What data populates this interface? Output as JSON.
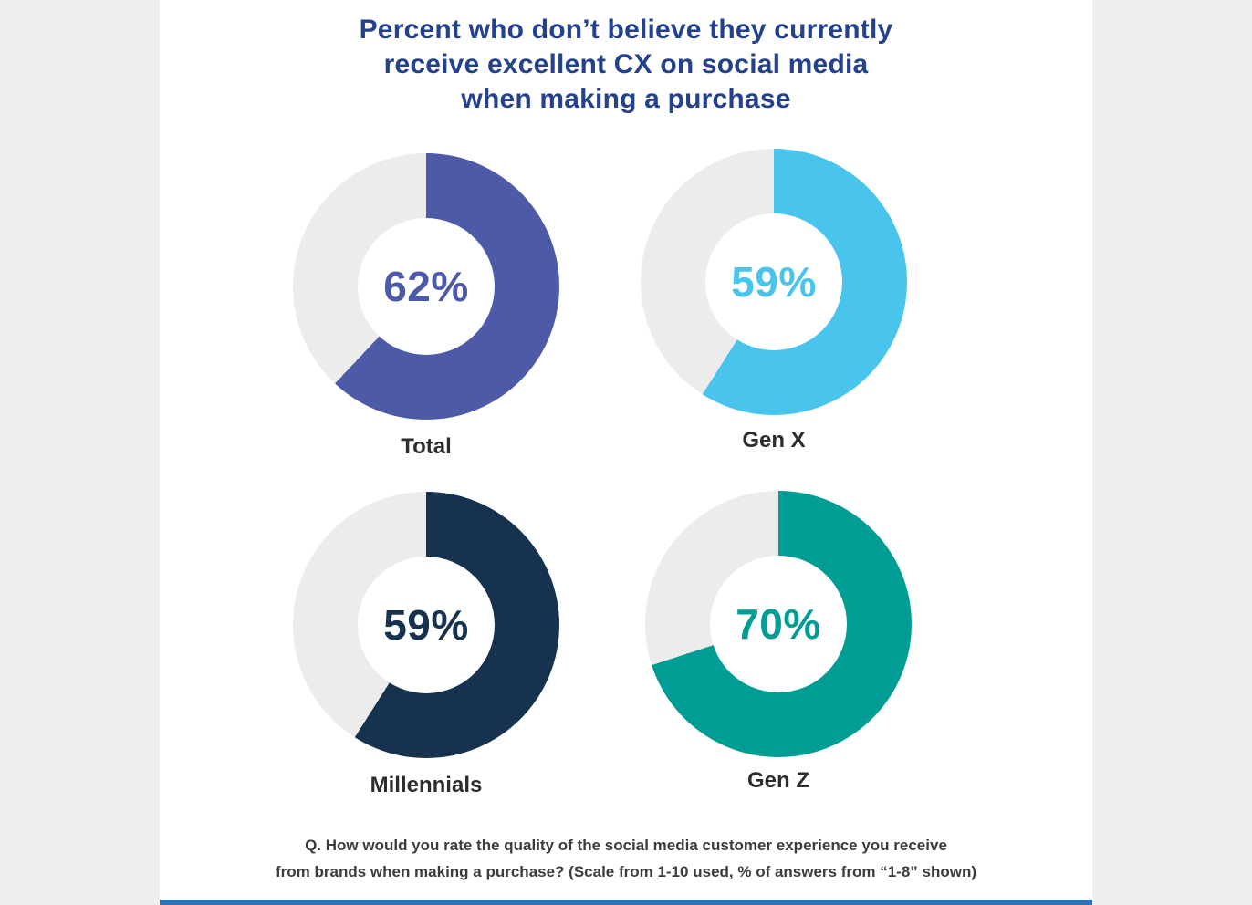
{
  "page": {
    "outer_background": "#efefef",
    "card_background": "#ffffff",
    "bottom_bar_color": "#2e74b5"
  },
  "header": {
    "lines": [
      "Percent who don’t believe they currently",
      "receive excellent CX on social media",
      "when making a purchase"
    ],
    "color": "#24418c"
  },
  "footnote": {
    "lines": [
      "Q. How would you rate the quality of the social media customer experience you receive",
      "from brands when making a purchase? (Scale from 1-10 used, % of answers from “1-8” shown)"
    ]
  },
  "chart_data": {
    "type": "pie",
    "subtype": "donut",
    "title": "Percent who don’t believe they currently receive excellent CX on social media when making a purchase",
    "track_color": "#ececec",
    "start_angle_deg": 0,
    "direction": "clockwise",
    "charts": [
      {
        "label": "Total",
        "value": 62,
        "display": "62%",
        "color": "#4d5aa7"
      },
      {
        "label": "Gen X",
        "value": 59,
        "display": "59%",
        "color": "#49c5ed"
      },
      {
        "label": "Millennials",
        "value": 59,
        "display": "59%",
        "color": "#16324e"
      },
      {
        "label": "Gen Z",
        "value": 70,
        "display": "70%",
        "color": "#009d94"
      }
    ]
  }
}
